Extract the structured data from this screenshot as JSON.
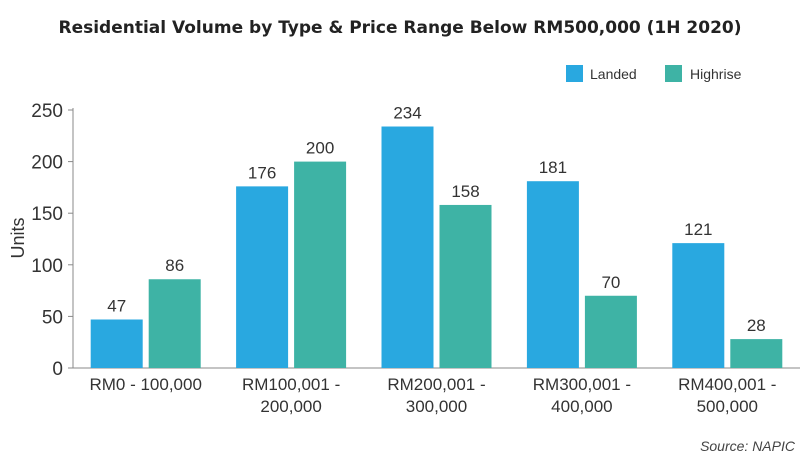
{
  "chart_data": {
    "type": "bar",
    "title": "Residential Volume by Type & Price Range Below RM500,000 (1H 2020)",
    "ylabel": "Units",
    "xlabel": "",
    "ylim": [
      0,
      250
    ],
    "yticks": [
      0,
      50,
      100,
      150,
      200,
      250
    ],
    "grid": false,
    "legend_position": "top-right",
    "categories": [
      [
        "RM0 - 100,000"
      ],
      [
        "RM100,001 -",
        "200,000"
      ],
      [
        "RM200,001 -",
        "300,000"
      ],
      [
        "RM300,001 -",
        "400,000"
      ],
      [
        "RM400,001 -",
        "500,000"
      ]
    ],
    "series": [
      {
        "name": "Landed",
        "color": "#29A8E0",
        "values": [
          47,
          176,
          234,
          181,
          121
        ]
      },
      {
        "name": "Highrise",
        "color": "#3EB3A5",
        "values": [
          86,
          200,
          158,
          70,
          28
        ]
      }
    ],
    "source": "Source: NAPIC"
  }
}
